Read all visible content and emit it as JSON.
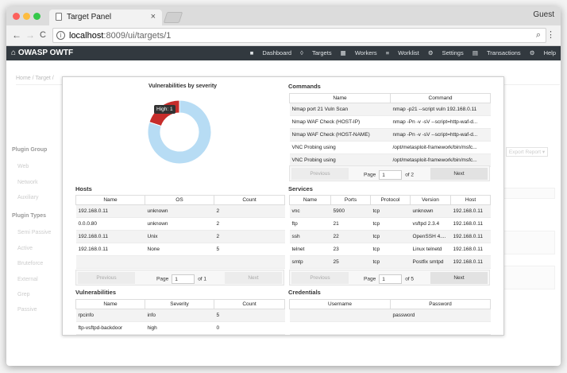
{
  "browser": {
    "tab_title": "Target Panel",
    "tab_close": "×",
    "profile": "Guest",
    "url_host": "localhost",
    "url_rest": ":8009/ui/targets/1",
    "back": "←",
    "forward": "→",
    "reload": "C"
  },
  "app": {
    "brand": "OWASP OWTF",
    "nav": [
      "Dashboard",
      "Targets",
      "Workers",
      "Worklist",
      "Settings",
      "Transactions",
      "Help"
    ]
  },
  "background": {
    "breadcrumb": "Home / Target / ",
    "plugin_group_title": "Plugin Group",
    "plugin_groups": [
      "Web",
      "Network",
      "Auxiliary"
    ],
    "plugin_types_title": "Plugin Types",
    "plugin_types": [
      "Semi Passive",
      "Active",
      "Bruteforce",
      "External",
      "Grep",
      "Passive"
    ],
    "export_button": "Export Report"
  },
  "vuln_chart": {
    "title": "Vulnerabilities by severity",
    "tooltip": "High: 1",
    "colors": {
      "high": "#c62d2b",
      "other": "#b7dcf4"
    }
  },
  "chart_data": {
    "type": "pie",
    "title": "Vulnerabilities by severity",
    "labels": [
      "High",
      "Other"
    ],
    "values": [
      1,
      4
    ]
  },
  "commands": {
    "title": "Commands",
    "headers": [
      "Name",
      "Command"
    ],
    "rows": [
      [
        "Nmap port 21 Vuln Scan",
        "nmap -p21 --script vuln 192.168.0.11"
      ],
      [
        "Nmap WAF Check (HOST-IP)",
        "nmap -Pn -v -sV --script=http-waf-d..."
      ],
      [
        "Nmap WAF Check (HOST-NAME)",
        "nmap -Pn -v -sV --script=http-waf-d..."
      ],
      [
        "VNC Probing using",
        "/opt/metasploit-framework/bin/msfc..."
      ],
      [
        "VNC Probing using",
        "/opt/metasploit-framework/bin/msfc..."
      ]
    ],
    "pager": {
      "previous": "Previous",
      "page_label": "Page",
      "page": "1",
      "of": "of 2",
      "next": "Next"
    }
  },
  "hosts": {
    "title": "Hosts",
    "headers": [
      "Name",
      "OS",
      "Count"
    ],
    "rows": [
      [
        "192.168.0.11",
        "unknown",
        "2"
      ],
      [
        "0.0.0.80",
        "unknown",
        "2"
      ],
      [
        "192.168.0.11",
        "Unix",
        "2"
      ],
      [
        "192.168.0.11",
        "None",
        "5"
      ]
    ],
    "pager": {
      "previous": "Previous",
      "page_label": "Page",
      "page": "1",
      "of": "of 1",
      "next": "Next"
    }
  },
  "services": {
    "title": "Services",
    "headers": [
      "Name",
      "Ports",
      "Protocol",
      "Version",
      "Host"
    ],
    "rows": [
      [
        "vnc",
        "5900",
        "tcp",
        "unknown",
        "192.168.0.11"
      ],
      [
        "ftp",
        "21",
        "tcp",
        "vsftpd 2.3.4",
        "192.168.0.11"
      ],
      [
        "ssh",
        "22",
        "tcp",
        "OpenSSH 4....",
        "192.168.0.11"
      ],
      [
        "telnet",
        "23",
        "tcp",
        "Linux telnetd",
        "192.168.0.11"
      ],
      [
        "smtp",
        "25",
        "tcp",
        "Postfix smtpd",
        "192.168.0.11"
      ]
    ],
    "pager": {
      "previous": "Previous",
      "page_label": "Page",
      "page": "1",
      "of": "of 5",
      "next": "Next"
    }
  },
  "vulnerabilities": {
    "title": "Vulnerabilities",
    "headers": [
      "Name",
      "Severity",
      "Count"
    ],
    "rows": [
      [
        "rpcinfo",
        "info",
        "5"
      ],
      [
        "ftp-vsftpd-backdoor",
        "high",
        "0"
      ]
    ]
  },
  "credentials": {
    "title": "Credentials",
    "headers": [
      "Username",
      "Password"
    ],
    "rows": [
      [
        "",
        "password"
      ]
    ]
  }
}
